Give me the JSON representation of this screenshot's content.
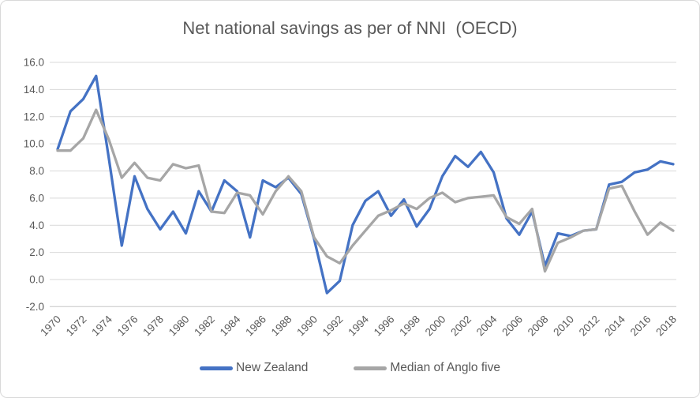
{
  "title": "Net national savings as per of NNI  (OECD)",
  "chart_data": {
    "type": "line",
    "title": "Net national savings as per of NNI  (OECD)",
    "xlabel": "",
    "ylabel": "",
    "x": [
      1970,
      1971,
      1972,
      1973,
      1974,
      1975,
      1976,
      1977,
      1978,
      1979,
      1980,
      1981,
      1982,
      1983,
      1984,
      1985,
      1986,
      1987,
      1988,
      1989,
      1990,
      1991,
      1992,
      1993,
      1994,
      1995,
      1996,
      1997,
      1998,
      1999,
      2000,
      2001,
      2002,
      2003,
      2004,
      2005,
      2006,
      2007,
      2008,
      2009,
      2010,
      2011,
      2012,
      2013,
      2014,
      2015,
      2016,
      2017,
      2018
    ],
    "series": [
      {
        "name": "New Zealand",
        "color": "#4472C4",
        "values": [
          9.6,
          12.4,
          13.3,
          15.0,
          8.9,
          2.5,
          7.6,
          5.2,
          3.7,
          5.0,
          3.4,
          6.5,
          5.0,
          7.3,
          6.5,
          3.1,
          7.3,
          6.8,
          7.5,
          6.3,
          3.0,
          -1.0,
          -0.1,
          4.0,
          5.8,
          6.5,
          4.7,
          5.9,
          3.9,
          5.2,
          7.6,
          9.1,
          8.3,
          9.4,
          7.9,
          4.5,
          3.3,
          5.0,
          1.0,
          3.4,
          3.2,
          3.6,
          3.7,
          7.0,
          7.2,
          7.9,
          8.1,
          8.7,
          8.5
        ]
      },
      {
        "name": "Median of Anglo five",
        "color": "#A6A6A6",
        "values": [
          9.5,
          9.5,
          10.4,
          12.5,
          10.3,
          7.5,
          8.6,
          7.5,
          7.3,
          8.5,
          8.2,
          8.4,
          5.0,
          4.9,
          6.4,
          6.2,
          4.8,
          6.5,
          7.6,
          6.5,
          3.1,
          1.7,
          1.2,
          2.5,
          3.6,
          4.7,
          5.1,
          5.6,
          5.2,
          6.0,
          6.4,
          5.7,
          6.0,
          6.1,
          6.2,
          4.6,
          4.1,
          5.2,
          0.6,
          2.7,
          3.1,
          3.6,
          3.7,
          6.7,
          6.9,
          5.0,
          3.3,
          4.2,
          3.6
        ]
      }
    ],
    "ylim": [
      -2.0,
      16.0
    ],
    "ytick_step": 2.0,
    "y_tick_labels": [
      "16.0",
      "14.0",
      "12.0",
      "10.0",
      "8.0",
      "6.0",
      "4.0",
      "2.0",
      "0.0",
      "-2.0"
    ],
    "x_tick_labels": [
      "1970",
      "1972",
      "1974",
      "1976",
      "1978",
      "1980",
      "1982",
      "1984",
      "1986",
      "1988",
      "1990",
      "1992",
      "1994",
      "1996",
      "1998",
      "2000",
      "2002",
      "2004",
      "2006",
      "2008",
      "2010",
      "2012",
      "2014",
      "2016",
      "2018"
    ],
    "grid": "horizontal",
    "legend_position": "bottom"
  },
  "colors": {
    "text": "#595959",
    "gridline": "#D9D9D9",
    "axis_line": "#C6C6C6",
    "background": "#FFFFFF",
    "border": "#D9D9D9"
  }
}
